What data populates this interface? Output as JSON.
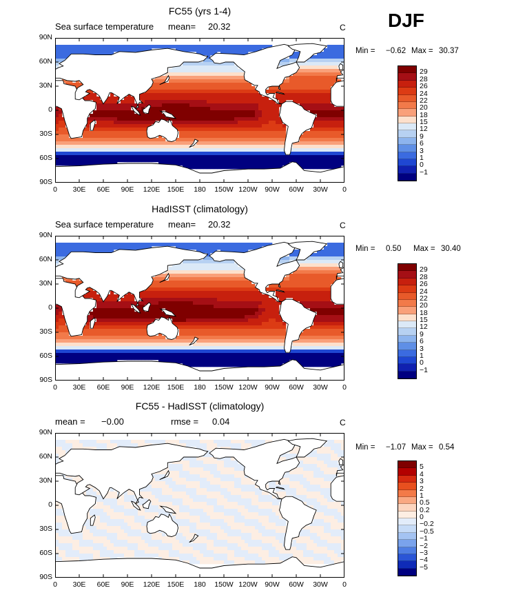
{
  "season": "DJF",
  "panels": [
    {
      "title": "FC55 (yrs 1-4)",
      "var_label": "Sea surface temperature",
      "stat1_label": "mean=",
      "stat1_value": "20.32",
      "stat2_label": "",
      "stat2_value": "",
      "unit": "C",
      "min_label": "Min =",
      "min_value": "−0.62",
      "max_label": "Max =",
      "max_value": "30.37",
      "kind": "sst",
      "colorbar_labels": [
        "29",
        "28",
        "26",
        "24",
        "22",
        "20",
        "18",
        "15",
        "12",
        "9",
        "6",
        "3",
        "1",
        "0",
        "−1"
      ]
    },
    {
      "title": "HadISST (climatology)",
      "var_label": "Sea surface temperature",
      "stat1_label": "mean=",
      "stat1_value": "20.32",
      "stat2_label": "",
      "stat2_value": "",
      "unit": "C",
      "min_label": "Min =",
      "min_value": "0.50",
      "max_label": "Max =",
      "max_value": "30.40",
      "kind": "sst",
      "colorbar_labels": [
        "29",
        "28",
        "26",
        "24",
        "22",
        "20",
        "18",
        "15",
        "12",
        "9",
        "6",
        "3",
        "1",
        "0",
        "−1"
      ]
    },
    {
      "title": "FC55 - HadISST (climatology)",
      "var_label": "",
      "stat1_label": "mean =",
      "stat1_value": "−0.00",
      "stat2_label": "rmse =",
      "stat2_value": "0.04",
      "unit": "C",
      "min_label": "Min =",
      "min_value": "−1.07",
      "max_label": "Max =",
      "max_value": "0.54",
      "kind": "diff",
      "colorbar_labels": [
        "5",
        "4",
        "3",
        "2",
        "1",
        "0.5",
        "0.2",
        "0",
        "−0.2",
        "−0.5",
        "−1",
        "−2",
        "−3",
        "−4",
        "−5"
      ]
    }
  ],
  "lat_labels": [
    "90N",
    "60N",
    "30N",
    "0",
    "30S",
    "60S",
    "90S"
  ],
  "lon_labels": [
    "0",
    "30E",
    "60E",
    "90E",
    "120E",
    "150E",
    "180",
    "150W",
    "120W",
    "90W",
    "60W",
    "30W",
    "0"
  ],
  "colors": {
    "sst_palette": [
      "#7f0000",
      "#a50f15",
      "#c7200e",
      "#dc3b14",
      "#e85a2a",
      "#f27a4a",
      "#f9a07a",
      "#fde0cc",
      "#dbe9f7",
      "#b7d1f2",
      "#8db4ee",
      "#5f8fe6",
      "#3b6be0",
      "#1f47d2",
      "#1020b0",
      "#000080"
    ],
    "diff_palette": [
      "#7f0000",
      "#b30000",
      "#d62a10",
      "#e8501f",
      "#f37a48",
      "#f9a882",
      "#fcd5bf",
      "#fdeee3",
      "#e2ecfa",
      "#c6dbf7",
      "#a4c3f2",
      "#7aa3ec",
      "#4f7ee3",
      "#2a55d6",
      "#0f2bb8",
      "#000080"
    ],
    "land": "#ffffff",
    "coast": "#000000"
  }
}
